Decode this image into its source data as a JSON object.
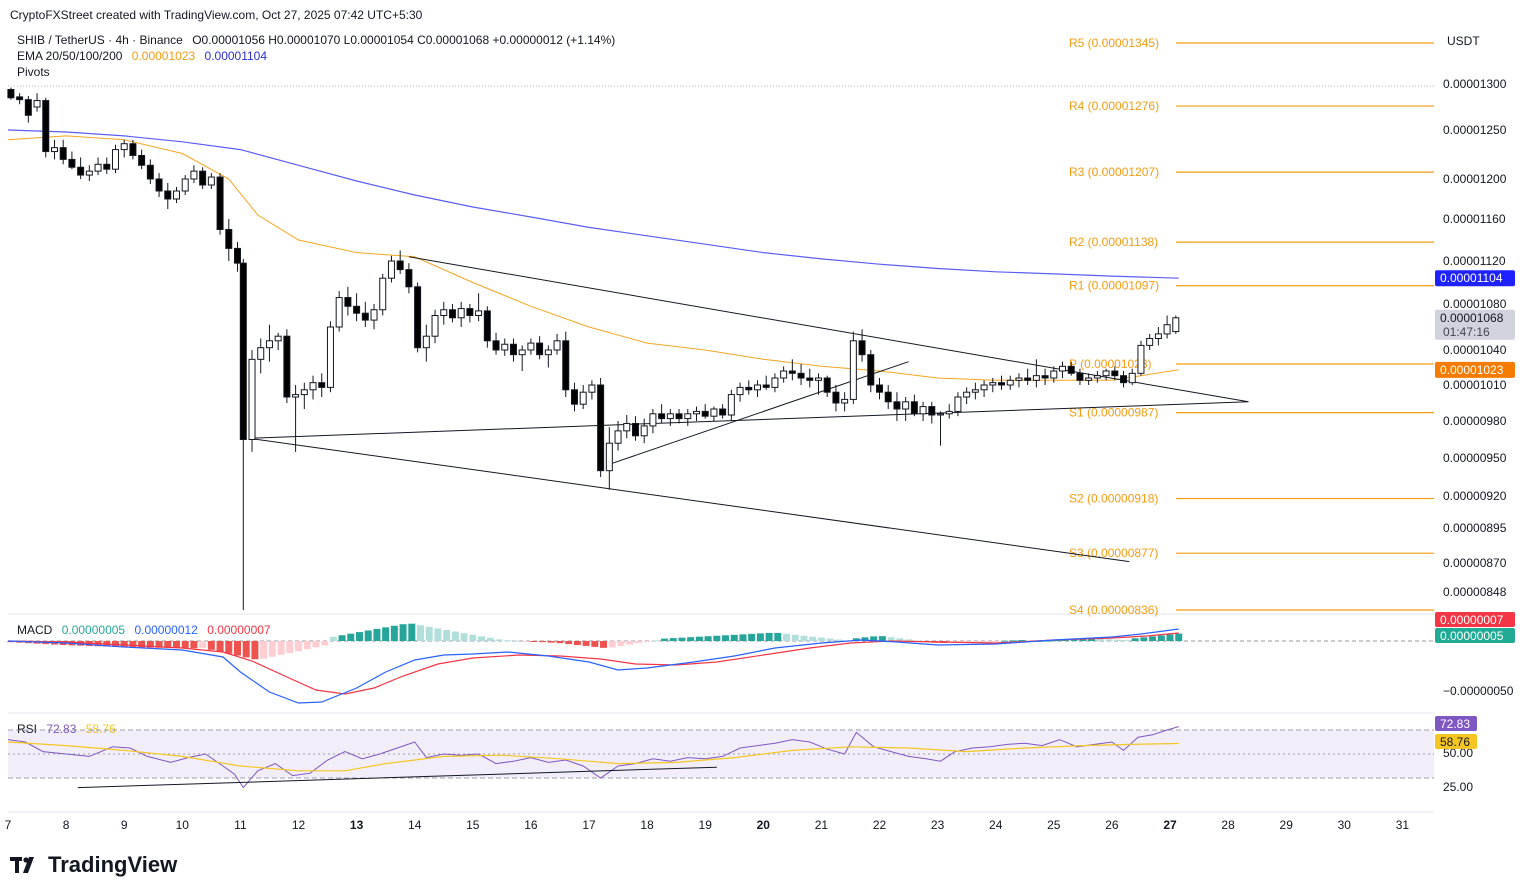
{
  "header": {
    "created_by": "CryptoFXStreet created with TradingView.com, Oct 27, 2025 07:42 UTC+5:30",
    "symbol": "SHIB / TetherUS · 4h · Binance",
    "ohlc": "O0.00001056 H0.00001070 L0.00001054 C0.00001068 +0.00000012 (+1.14%)",
    "ema_label": "EMA 20/50/100/200",
    "ema_val_1": "0.00001023",
    "ema_val_2": "0.00001104",
    "pivots_label": "Pivots"
  },
  "colors": {
    "up": "#ffffff",
    "down": "#000000",
    "ema50": "#f5a623",
    "ema200": "#5b5ef5",
    "pivot": "#f39c12",
    "macd_line": "#2962ff",
    "signal_line": "#f23645",
    "hist_pos_strong": "#26a69a",
    "hist_pos_weak": "#b2dfdb",
    "hist_neg_strong": "#ef5350",
    "hist_neg_weak": "#ffcdd2",
    "rsi_line": "#7e57c2",
    "rsi_ma": "#f5c623"
  },
  "price_axis": {
    "unit_label": "USDT",
    "ticks": [
      "0.00001300",
      "0.00001250",
      "0.00001200",
      "0.00001160",
      "0.00001120",
      "0.00001080",
      "0.00001040",
      "0.00001010",
      "0.00000980",
      "0.00000950",
      "0.00000920",
      "0.00000895",
      "0.00000870",
      "0.00000848"
    ],
    "ema200_tag": "0.00001104",
    "last_price_tag": "0.00001068",
    "countdown_tag": "01:47:16",
    "ema50_tag": "0.00001023"
  },
  "pivots": [
    {
      "label": "R5 (0.00001345)",
      "value": 1.345e-05
    },
    {
      "label": "R4 (0.00001276)",
      "value": 1.276e-05
    },
    {
      "label": "R3 (0.00001207)",
      "value": 1.207e-05
    },
    {
      "label": "R2 (0.00001138)",
      "value": 1.138e-05
    },
    {
      "label": "R1 (0.00001097)",
      "value": 1.097e-05
    },
    {
      "label": "P (0.00001028)",
      "value": 1.028e-05
    },
    {
      "label": "S1 (0.00000987)",
      "value": 9.87e-06
    },
    {
      "label": "S2 (0.00000918)",
      "value": 9.18e-06
    },
    {
      "label": "S3 (0.00000877)",
      "value": 8.77e-06
    },
    {
      "label": "S4 (0.00000836)",
      "value": 8.36e-06
    }
  ],
  "macd": {
    "label": "MACD",
    "hist_val": "0.00000005",
    "macd_val": "0.00000012",
    "signal_val": "0.00000007",
    "axis_tick": "−0.00000050",
    "tag_signal": "0.00000007",
    "tag_hist": "0.00000005"
  },
  "rsi": {
    "label": "RSI",
    "rsi_val": "72.83",
    "ma_val": "58.76",
    "axis_ticks": [
      "50.00",
      "25.00"
    ],
    "tag_rsi": "72.83",
    "tag_ma": "58.76"
  },
  "x_axis": {
    "labels": [
      "7",
      "8",
      "9",
      "10",
      "11",
      "12",
      "13",
      "14",
      "15",
      "16",
      "17",
      "18",
      "19",
      "20",
      "21",
      "22",
      "23",
      "24",
      "25",
      "26",
      "27",
      "28",
      "29",
      "30",
      "31"
    ],
    "bold": [
      "13",
      "20",
      "27"
    ]
  },
  "brand": "TradingView",
  "chart_data": {
    "type": "candlestick",
    "symbol": "SHIB / TetherUS",
    "timeframe": "4h",
    "exchange": "Binance",
    "ylim": [
      8.36e-06,
      1.345e-05
    ],
    "x_days": [
      7,
      31
    ],
    "candles": [
      {
        "d": 7.05,
        "o": 1294,
        "h": 1296,
        "l": 1283,
        "c": 1285
      },
      {
        "d": 7.2,
        "o": 1286,
        "h": 1290,
        "l": 1278,
        "c": 1283
      },
      {
        "d": 7.35,
        "o": 1283,
        "h": 1287,
        "l": 1258,
        "c": 1266
      },
      {
        "d": 7.5,
        "o": 1275,
        "h": 1290,
        "l": 1270,
        "c": 1282
      },
      {
        "d": 7.65,
        "o": 1282,
        "h": 1285,
        "l": 1222,
        "c": 1228
      },
      {
        "d": 7.8,
        "o": 1228,
        "h": 1240,
        "l": 1220,
        "c": 1232
      },
      {
        "d": 7.95,
        "o": 1232,
        "h": 1240,
        "l": 1215,
        "c": 1220
      },
      {
        "d": 8.1,
        "o": 1220,
        "h": 1228,
        "l": 1210,
        "c": 1212
      },
      {
        "d": 8.25,
        "o": 1212,
        "h": 1222,
        "l": 1200,
        "c": 1204
      },
      {
        "d": 8.4,
        "o": 1204,
        "h": 1214,
        "l": 1198,
        "c": 1208
      },
      {
        "d": 8.55,
        "o": 1208,
        "h": 1222,
        "l": 1204,
        "c": 1215
      },
      {
        "d": 8.7,
        "o": 1215,
        "h": 1222,
        "l": 1205,
        "c": 1210
      },
      {
        "d": 8.85,
        "o": 1210,
        "h": 1235,
        "l": 1206,
        "c": 1230
      },
      {
        "d": 9.0,
        "o": 1230,
        "h": 1240,
        "l": 1222,
        "c": 1236
      },
      {
        "d": 9.15,
        "o": 1236,
        "h": 1240,
        "l": 1220,
        "c": 1224
      },
      {
        "d": 9.3,
        "o": 1224,
        "h": 1230,
        "l": 1210,
        "c": 1214
      },
      {
        "d": 9.45,
        "o": 1214,
        "h": 1220,
        "l": 1195,
        "c": 1200
      },
      {
        "d": 9.6,
        "o": 1200,
        "h": 1206,
        "l": 1182,
        "c": 1188
      },
      {
        "d": 9.75,
        "o": 1188,
        "h": 1196,
        "l": 1170,
        "c": 1180
      },
      {
        "d": 9.9,
        "o": 1180,
        "h": 1192,
        "l": 1176,
        "c": 1188
      },
      {
        "d": 10.05,
        "o": 1188,
        "h": 1204,
        "l": 1184,
        "c": 1200
      },
      {
        "d": 10.2,
        "o": 1200,
        "h": 1214,
        "l": 1196,
        "c": 1208
      },
      {
        "d": 10.35,
        "o": 1208,
        "h": 1212,
        "l": 1190,
        "c": 1194
      },
      {
        "d": 10.5,
        "o": 1194,
        "h": 1206,
        "l": 1190,
        "c": 1202
      },
      {
        "d": 10.65,
        "o": 1202,
        "h": 1206,
        "l": 1145,
        "c": 1150
      },
      {
        "d": 10.8,
        "o": 1150,
        "h": 1160,
        "l": 1120,
        "c": 1132
      },
      {
        "d": 10.95,
        "o": 1132,
        "h": 1138,
        "l": 1110,
        "c": 1118
      },
      {
        "d": 11.05,
        "o": 1118,
        "h": 1122,
        "l": 836,
        "c": 965
      },
      {
        "d": 11.2,
        "o": 965,
        "h": 1040,
        "l": 955,
        "c": 1032
      },
      {
        "d": 11.35,
        "o": 1032,
        "h": 1050,
        "l": 1020,
        "c": 1042
      },
      {
        "d": 11.5,
        "o": 1042,
        "h": 1062,
        "l": 1030,
        "c": 1048
      },
      {
        "d": 11.65,
        "o": 1048,
        "h": 1055,
        "l": 1040,
        "c": 1052
      },
      {
        "d": 11.8,
        "o": 1052,
        "h": 1058,
        "l": 995,
        "c": 1000
      },
      {
        "d": 11.95,
        "o": 1000,
        "h": 1010,
        "l": 955,
        "c": 1002
      },
      {
        "d": 12.1,
        "o": 1002,
        "h": 1012,
        "l": 990,
        "c": 1006
      },
      {
        "d": 12.25,
        "o": 1006,
        "h": 1018,
        "l": 998,
        "c": 1012
      },
      {
        "d": 12.4,
        "o": 1012,
        "h": 1020,
        "l": 1000,
        "c": 1008
      },
      {
        "d": 12.55,
        "o": 1008,
        "h": 1065,
        "l": 1004,
        "c": 1060
      },
      {
        "d": 12.7,
        "o": 1060,
        "h": 1092,
        "l": 1056,
        "c": 1086
      },
      {
        "d": 12.85,
        "o": 1086,
        "h": 1096,
        "l": 1070,
        "c": 1078
      },
      {
        "d": 13.0,
        "o": 1078,
        "h": 1090,
        "l": 1065,
        "c": 1072
      },
      {
        "d": 13.15,
        "o": 1072,
        "h": 1082,
        "l": 1060,
        "c": 1066
      },
      {
        "d": 13.3,
        "o": 1066,
        "h": 1080,
        "l": 1058,
        "c": 1075
      },
      {
        "d": 13.45,
        "o": 1075,
        "h": 1108,
        "l": 1070,
        "c": 1104
      },
      {
        "d": 13.6,
        "o": 1104,
        "h": 1125,
        "l": 1100,
        "c": 1120
      },
      {
        "d": 13.75,
        "o": 1120,
        "h": 1130,
        "l": 1108,
        "c": 1112
      },
      {
        "d": 13.9,
        "o": 1112,
        "h": 1118,
        "l": 1090,
        "c": 1096
      },
      {
        "d": 14.05,
        "o": 1096,
        "h": 1100,
        "l": 1038,
        "c": 1042
      },
      {
        "d": 14.2,
        "o": 1042,
        "h": 1062,
        "l": 1030,
        "c": 1052
      },
      {
        "d": 14.35,
        "o": 1052,
        "h": 1075,
        "l": 1046,
        "c": 1070
      },
      {
        "d": 14.5,
        "o": 1070,
        "h": 1082,
        "l": 1062,
        "c": 1075
      },
      {
        "d": 14.65,
        "o": 1075,
        "h": 1080,
        "l": 1064,
        "c": 1068
      },
      {
        "d": 14.8,
        "o": 1068,
        "h": 1082,
        "l": 1060,
        "c": 1076
      },
      {
        "d": 14.95,
        "o": 1076,
        "h": 1080,
        "l": 1064,
        "c": 1070
      },
      {
        "d": 15.1,
        "o": 1070,
        "h": 1090,
        "l": 1065,
        "c": 1074
      },
      {
        "d": 15.25,
        "o": 1074,
        "h": 1078,
        "l": 1042,
        "c": 1048
      },
      {
        "d": 15.4,
        "o": 1048,
        "h": 1055,
        "l": 1036,
        "c": 1040
      },
      {
        "d": 15.55,
        "o": 1040,
        "h": 1050,
        "l": 1035,
        "c": 1045
      },
      {
        "d": 15.7,
        "o": 1045,
        "h": 1050,
        "l": 1030,
        "c": 1036
      },
      {
        "d": 15.85,
        "o": 1036,
        "h": 1044,
        "l": 1022,
        "c": 1040
      },
      {
        "d": 16.0,
        "o": 1040,
        "h": 1050,
        "l": 1036,
        "c": 1046
      },
      {
        "d": 16.15,
        "o": 1046,
        "h": 1052,
        "l": 1032,
        "c": 1036
      },
      {
        "d": 16.3,
        "o": 1036,
        "h": 1044,
        "l": 1025,
        "c": 1040
      },
      {
        "d": 16.45,
        "o": 1040,
        "h": 1054,
        "l": 1036,
        "c": 1048
      },
      {
        "d": 16.6,
        "o": 1048,
        "h": 1056,
        "l": 1000,
        "c": 1006
      },
      {
        "d": 16.75,
        "o": 1006,
        "h": 1012,
        "l": 988,
        "c": 994
      },
      {
        "d": 16.9,
        "o": 994,
        "h": 1010,
        "l": 990,
        "c": 1004
      },
      {
        "d": 17.05,
        "o": 1004,
        "h": 1014,
        "l": 998,
        "c": 1010
      },
      {
        "d": 17.2,
        "o": 1010,
        "h": 1016,
        "l": 935,
        "c": 940
      },
      {
        "d": 17.35,
        "o": 940,
        "h": 975,
        "l": 925,
        "c": 962
      },
      {
        "d": 17.5,
        "o": 962,
        "h": 980,
        "l": 956,
        "c": 972
      },
      {
        "d": 17.65,
        "o": 972,
        "h": 985,
        "l": 966,
        "c": 978
      },
      {
        "d": 17.8,
        "o": 978,
        "h": 984,
        "l": 964,
        "c": 968
      },
      {
        "d": 17.95,
        "o": 968,
        "h": 982,
        "l": 962,
        "c": 976
      },
      {
        "d": 18.1,
        "o": 976,
        "h": 990,
        "l": 970,
        "c": 986
      },
      {
        "d": 18.25,
        "o": 986,
        "h": 994,
        "l": 978,
        "c": 982
      },
      {
        "d": 18.4,
        "o": 982,
        "h": 990,
        "l": 976,
        "c": 986
      },
      {
        "d": 18.55,
        "o": 986,
        "h": 990,
        "l": 978,
        "c": 982
      },
      {
        "d": 18.7,
        "o": 982,
        "h": 990,
        "l": 976,
        "c": 986
      },
      {
        "d": 18.85,
        "o": 986,
        "h": 992,
        "l": 980,
        "c": 988
      },
      {
        "d": 19.0,
        "o": 988,
        "h": 994,
        "l": 982,
        "c": 984
      },
      {
        "d": 19.15,
        "o": 984,
        "h": 992,
        "l": 980,
        "c": 990
      },
      {
        "d": 19.3,
        "o": 990,
        "h": 994,
        "l": 982,
        "c": 985
      },
      {
        "d": 19.45,
        "o": 985,
        "h": 1006,
        "l": 980,
        "c": 1002
      },
      {
        "d": 19.6,
        "o": 1002,
        "h": 1012,
        "l": 996,
        "c": 1008
      },
      {
        "d": 19.75,
        "o": 1008,
        "h": 1014,
        "l": 1002,
        "c": 1006
      },
      {
        "d": 19.9,
        "o": 1006,
        "h": 1014,
        "l": 1000,
        "c": 1010
      },
      {
        "d": 20.05,
        "o": 1010,
        "h": 1018,
        "l": 1006,
        "c": 1008
      },
      {
        "d": 20.2,
        "o": 1008,
        "h": 1020,
        "l": 1004,
        "c": 1016
      },
      {
        "d": 20.35,
        "o": 1016,
        "h": 1026,
        "l": 1012,
        "c": 1022
      },
      {
        "d": 20.5,
        "o": 1022,
        "h": 1032,
        "l": 1014,
        "c": 1020
      },
      {
        "d": 20.65,
        "o": 1020,
        "h": 1028,
        "l": 1010,
        "c": 1016
      },
      {
        "d": 20.8,
        "o": 1016,
        "h": 1024,
        "l": 1008,
        "c": 1014
      },
      {
        "d": 20.95,
        "o": 1014,
        "h": 1020,
        "l": 1002,
        "c": 1016
      },
      {
        "d": 21.1,
        "o": 1016,
        "h": 1018,
        "l": 1000,
        "c": 1004
      },
      {
        "d": 21.25,
        "o": 1004,
        "h": 1010,
        "l": 988,
        "c": 995
      },
      {
        "d": 21.4,
        "o": 995,
        "h": 1004,
        "l": 988,
        "c": 998
      },
      {
        "d": 21.55,
        "o": 998,
        "h": 1056,
        "l": 994,
        "c": 1048
      },
      {
        "d": 21.7,
        "o": 1048,
        "h": 1058,
        "l": 1030,
        "c": 1036
      },
      {
        "d": 21.85,
        "o": 1036,
        "h": 1040,
        "l": 1004,
        "c": 1010
      },
      {
        "d": 22.0,
        "o": 1010,
        "h": 1016,
        "l": 998,
        "c": 1004
      },
      {
        "d": 22.15,
        "o": 1004,
        "h": 1010,
        "l": 990,
        "c": 996
      },
      {
        "d": 22.3,
        "o": 996,
        "h": 1004,
        "l": 980,
        "c": 990
      },
      {
        "d": 22.45,
        "o": 990,
        "h": 1000,
        "l": 980,
        "c": 996
      },
      {
        "d": 22.6,
        "o": 996,
        "h": 1002,
        "l": 984,
        "c": 986
      },
      {
        "d": 22.75,
        "o": 986,
        "h": 996,
        "l": 980,
        "c": 992
      },
      {
        "d": 22.9,
        "o": 992,
        "h": 996,
        "l": 978,
        "c": 985
      },
      {
        "d": 23.05,
        "o": 985,
        "h": 988,
        "l": 960,
        "c": 986
      },
      {
        "d": 23.2,
        "o": 986,
        "h": 994,
        "l": 982,
        "c": 988
      },
      {
        "d": 23.35,
        "o": 988,
        "h": 1004,
        "l": 984,
        "c": 1000
      },
      {
        "d": 23.5,
        "o": 1000,
        "h": 1008,
        "l": 994,
        "c": 1004
      },
      {
        "d": 23.65,
        "o": 1004,
        "h": 1012,
        "l": 998,
        "c": 1006
      },
      {
        "d": 23.8,
        "o": 1006,
        "h": 1014,
        "l": 1000,
        "c": 1010
      },
      {
        "d": 23.95,
        "o": 1010,
        "h": 1016,
        "l": 1004,
        "c": 1012
      },
      {
        "d": 24.1,
        "o": 1012,
        "h": 1018,
        "l": 1006,
        "c": 1010
      },
      {
        "d": 24.25,
        "o": 1010,
        "h": 1018,
        "l": 1006,
        "c": 1014
      },
      {
        "d": 24.4,
        "o": 1014,
        "h": 1020,
        "l": 1008,
        "c": 1016
      },
      {
        "d": 24.55,
        "o": 1016,
        "h": 1024,
        "l": 1010,
        "c": 1014
      },
      {
        "d": 24.7,
        "o": 1014,
        "h": 1032,
        "l": 1008,
        "c": 1018
      },
      {
        "d": 24.85,
        "o": 1018,
        "h": 1024,
        "l": 1010,
        "c": 1016
      },
      {
        "d": 25.0,
        "o": 1016,
        "h": 1026,
        "l": 1012,
        "c": 1022
      },
      {
        "d": 25.15,
        "o": 1022,
        "h": 1030,
        "l": 1016,
        "c": 1026
      },
      {
        "d": 25.3,
        "o": 1026,
        "h": 1030,
        "l": 1018,
        "c": 1020
      },
      {
        "d": 25.45,
        "o": 1020,
        "h": 1024,
        "l": 1010,
        "c": 1014
      },
      {
        "d": 25.6,
        "o": 1014,
        "h": 1020,
        "l": 1010,
        "c": 1016
      },
      {
        "d": 25.75,
        "o": 1016,
        "h": 1022,
        "l": 1012,
        "c": 1018
      },
      {
        "d": 25.9,
        "o": 1018,
        "h": 1024,
        "l": 1014,
        "c": 1022
      },
      {
        "d": 26.05,
        "o": 1022,
        "h": 1026,
        "l": 1014,
        "c": 1018
      },
      {
        "d": 26.2,
        "o": 1018,
        "h": 1022,
        "l": 1008,
        "c": 1012
      },
      {
        "d": 26.35,
        "o": 1012,
        "h": 1024,
        "l": 1010,
        "c": 1020
      },
      {
        "d": 26.5,
        "o": 1020,
        "h": 1048,
        "l": 1018,
        "c": 1044
      },
      {
        "d": 26.65,
        "o": 1044,
        "h": 1054,
        "l": 1040,
        "c": 1050
      },
      {
        "d": 26.8,
        "o": 1050,
        "h": 1060,
        "l": 1044,
        "c": 1054
      },
      {
        "d": 26.95,
        "o": 1054,
        "h": 1070,
        "l": 1050,
        "c": 1062
      },
      {
        "d": 27.1,
        "o": 1056,
        "h": 1070,
        "l": 1054,
        "c": 1068
      }
    ],
    "trendlines": [
      {
        "d1": 11.15,
        "v1": 966,
        "d2": 28.35,
        "v2": 996
      },
      {
        "d1": 11.15,
        "v1": 966,
        "d2": 26.3,
        "v2": 871
      },
      {
        "d1": 13.9,
        "v1": 1124,
        "d2": 28.35,
        "v2": 996
      },
      {
        "d1": 17.35,
        "v1": 945,
        "d2": 22.5,
        "v2": 1030
      }
    ]
  }
}
